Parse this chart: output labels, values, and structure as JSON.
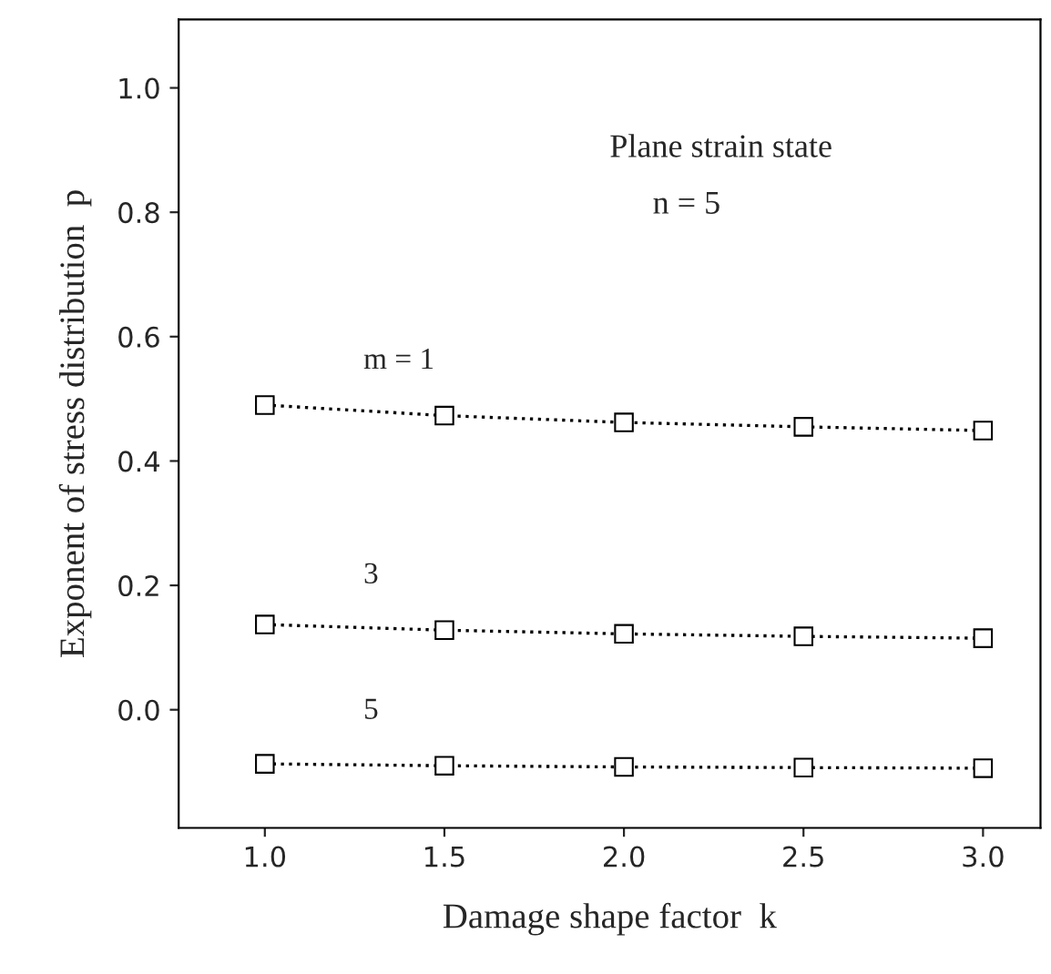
{
  "chart_data": {
    "type": "line",
    "xlabel": "Damage shape factor  k",
    "ylabel": "Exponent of stress distribution  p",
    "x": [
      1.0,
      1.5,
      2.0,
      2.5,
      3.0
    ],
    "series": [
      {
        "name": "m = 1",
        "color": "#000000",
        "values": [
          0.49,
          0.473,
          0.462,
          0.455,
          0.449
        ]
      },
      {
        "name": "3",
        "color": "#000000",
        "values": [
          0.137,
          0.128,
          0.122,
          0.118,
          0.115
        ]
      },
      {
        "name": "5",
        "color": "#000000",
        "values": [
          -0.087,
          -0.09,
          -0.092,
          -0.093,
          -0.094
        ]
      }
    ],
    "annotations": [
      "Plane strain state",
      "n = 5"
    ],
    "xlim": [
      0.76,
      3.16
    ],
    "ylim": [
      -0.19,
      1.11
    ],
    "xticks": [
      {
        "value": 1.0,
        "label": "1.0"
      },
      {
        "value": 1.5,
        "label": "1.5"
      },
      {
        "value": 2.0,
        "label": "2.0"
      },
      {
        "value": 2.5,
        "label": "2.5"
      },
      {
        "value": 3.0,
        "label": "3.0"
      }
    ],
    "yticks": [
      {
        "value": 0.0,
        "label": "0.0"
      },
      {
        "value": 0.2,
        "label": "0.2"
      },
      {
        "value": 0.4,
        "label": "0.4"
      },
      {
        "value": 0.6,
        "label": "0.6"
      },
      {
        "value": 0.8,
        "label": "0.8"
      },
      {
        "value": 1.0,
        "label": "1.0"
      }
    ],
    "marker": "square",
    "line_style": "dotted",
    "grid": false,
    "legend": false
  }
}
